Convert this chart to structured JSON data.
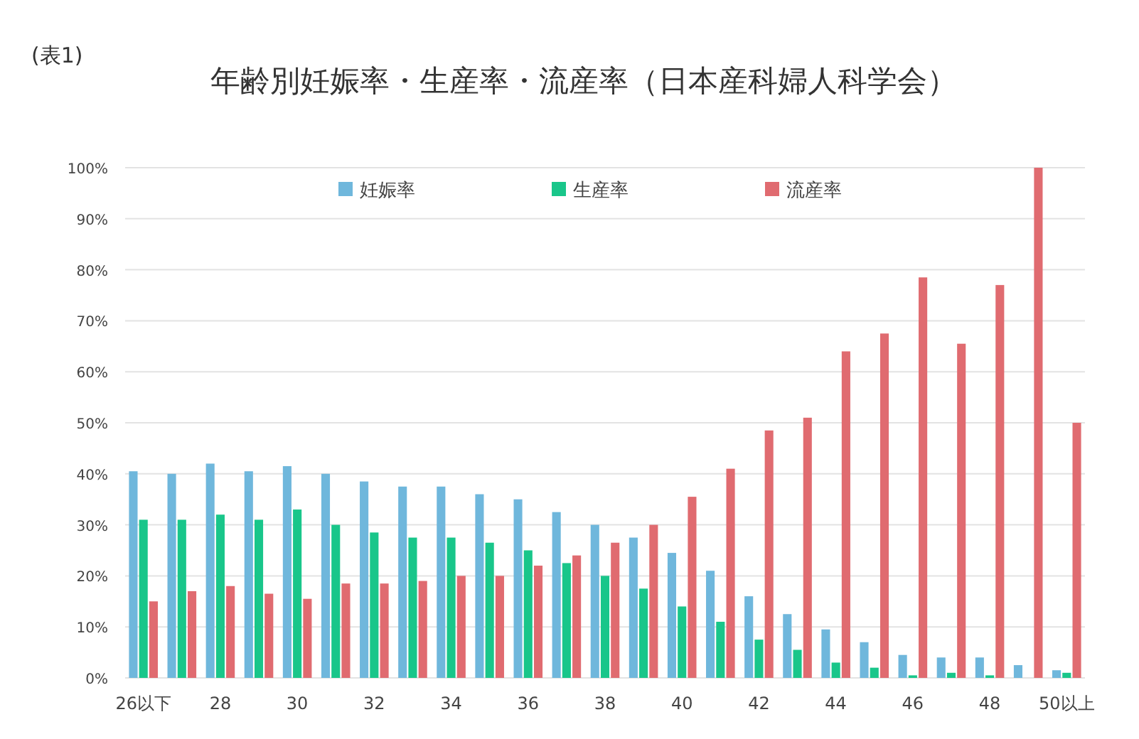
{
  "chart_data": {
    "type": "bar",
    "title": "年齢別妊娠率・生産率・流産率（日本産科婦人科学会）",
    "annotations": [
      "(表1)"
    ],
    "categories": [
      "26以下",
      null,
      "28",
      null,
      "30",
      null,
      "32",
      null,
      "34",
      null,
      "36",
      null,
      "38",
      null,
      "40",
      null,
      "42",
      null,
      "44",
      null,
      "46",
      null,
      "48",
      null,
      "50以上"
    ],
    "series": [
      {
        "name": "妊娠率",
        "color": "#6fb7dc",
        "values": [
          40.5,
          40,
          42,
          40.5,
          41.5,
          40,
          38.5,
          37.5,
          37.5,
          36,
          35,
          32.5,
          30,
          27.5,
          24.5,
          21,
          16,
          12.5,
          9.5,
          7,
          4.5,
          4,
          4,
          2.5,
          1.5
        ]
      },
      {
        "name": "生産率",
        "color": "#19c68a",
        "values": [
          31,
          31,
          32,
          31,
          33,
          30,
          28.5,
          27.5,
          27.5,
          26.5,
          25,
          22.5,
          20,
          17.5,
          14,
          11,
          7.5,
          5.5,
          3,
          2,
          0.5,
          1,
          0.5,
          0,
          1
        ]
      },
      {
        "name": "流産率",
        "color": "#e06b70",
        "values": [
          15,
          17,
          18,
          16.5,
          15.5,
          18.5,
          18.5,
          19,
          20,
          20,
          22,
          24,
          26.5,
          30,
          35.5,
          41,
          48.5,
          51,
          64,
          67.5,
          78.5,
          65.5,
          77,
          100,
          50
        ]
      }
    ],
    "ylim": [
      0,
      100
    ],
    "yticks": [
      {
        "value": 0,
        "label": "0%"
      },
      {
        "value": 10,
        "label": "10%"
      },
      {
        "value": 20,
        "label": "20%"
      },
      {
        "value": 30,
        "label": "30%"
      },
      {
        "value": 40,
        "label": "40%"
      },
      {
        "value": 50,
        "label": "50%"
      },
      {
        "value": 60,
        "label": "60%"
      },
      {
        "value": 70,
        "label": "70%"
      },
      {
        "value": 80,
        "label": "80%"
      },
      {
        "value": 90,
        "label": "90%"
      },
      {
        "value": 100,
        "label": "100%"
      }
    ],
    "grid": "y",
    "legend": "top"
  }
}
